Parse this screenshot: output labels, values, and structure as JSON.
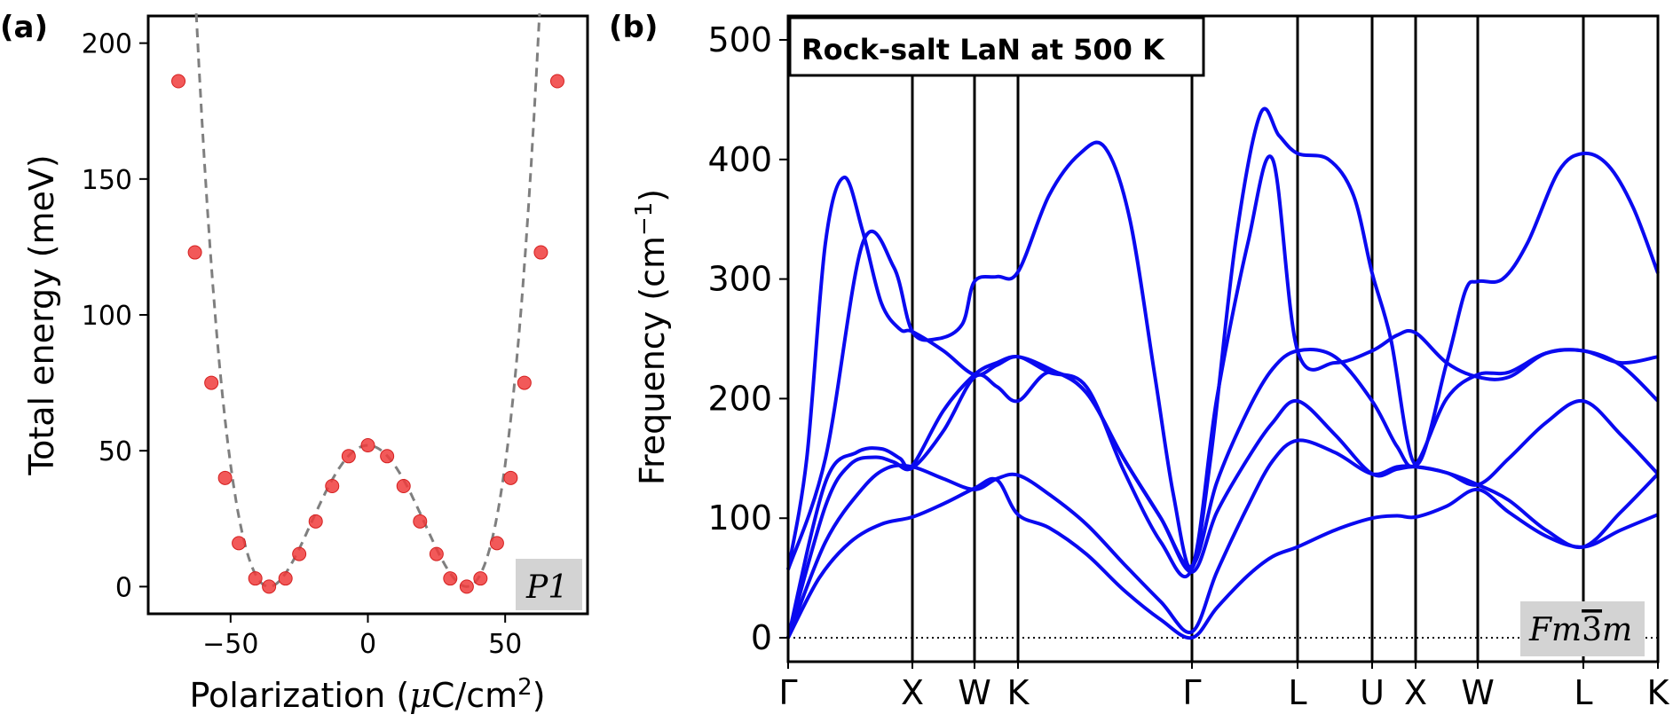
{
  "panels": {
    "a_label": "(a)",
    "b_label": "(b)"
  },
  "chart_data": [
    {
      "type": "scatter",
      "panel": "(a)",
      "xlabel_main": "Polarization (",
      "xlabel_mu": "μ",
      "xlabel_unit": "C/cm",
      "xlabel_sup": "2",
      "xlabel_close": ")",
      "ylabel": "Total energy (meV)",
      "xlim": [
        -80,
        80
      ],
      "ylim": [
        -10,
        210
      ],
      "xticks": [
        -50,
        0,
        50
      ],
      "xtick_labels": [
        "−50",
        "0",
        "50"
      ],
      "yticks": [
        0,
        50,
        100,
        150,
        200
      ],
      "ytick_labels": [
        "0",
        "50",
        "100",
        "150",
        "200"
      ],
      "fit_params": {
        "E0": 52,
        "P0": 36
      },
      "points": {
        "x": [
          -69,
          -63,
          -57,
          -52,
          -47,
          -41,
          -36,
          -30,
          -25,
          -19,
          -13,
          -7,
          0,
          7,
          13,
          19,
          25,
          30,
          36,
          41,
          47,
          52,
          57,
          63,
          69
        ],
        "y": [
          186,
          123,
          75,
          40,
          16,
          3,
          0,
          3,
          12,
          24,
          37,
          48,
          52,
          48,
          37,
          24,
          12,
          3,
          0,
          3,
          16,
          40,
          75,
          123,
          186
        ]
      },
      "annotation": "P1",
      "colors": {
        "points": "#f03c3c",
        "fit": "#7f7f7f",
        "label_box": "#d3d3d3"
      }
    },
    {
      "type": "line",
      "panel": "(b)",
      "title": "Rock-salt LaN at 500 K",
      "ylabel_main": "Frequency (cm",
      "ylabel_sup": "−1",
      "ylabel_close": ")",
      "ylim": [
        -20,
        520
      ],
      "yticks": [
        0,
        100,
        200,
        300,
        400,
        500
      ],
      "ytick_labels": [
        "0",
        "100",
        "200",
        "300",
        "400",
        "500"
      ],
      "path_labels": [
        "Γ",
        "X",
        "W",
        "K",
        "Γ",
        "L",
        "U",
        "X",
        "W",
        "L",
        "K"
      ],
      "path_positions": [
        0,
        1.0,
        1.5,
        1.85,
        3.25,
        4.1,
        4.7,
        5.05,
        5.55,
        6.4,
        7.0
      ],
      "annotation_main": "Fm",
      "annotation_bar": "3",
      "annotation_end": "m",
      "series": [
        {
          "x": [
            0,
            0.25,
            0.5,
            0.75,
            1.0,
            1.25,
            1.5,
            1.68,
            1.85,
            2.1,
            2.4,
            2.7,
            3.0,
            3.25,
            3.45,
            3.7,
            3.9,
            4.1,
            4.4,
            4.7,
            4.9,
            5.05,
            5.3,
            5.55,
            5.8,
            6.1,
            6.4,
            6.7,
            7.0
          ],
          "y": [
            0,
            50,
            80,
            95,
            101,
            112,
            125,
            132,
            103,
            92,
            70,
            40,
            15,
            0,
            25,
            52,
            68,
            76,
            90,
            100,
            102,
            101,
            110,
            124,
            105,
            85,
            76,
            90,
            103
          ]
        },
        {
          "x": [
            0,
            0.3,
            0.6,
            0.8,
            1.0,
            1.25,
            1.5,
            1.68,
            1.85,
            2.1,
            2.4,
            2.7,
            3.0,
            3.25,
            3.45,
            3.7,
            3.9,
            4.1,
            4.4,
            4.7,
            4.9,
            5.05,
            5.3,
            5.55,
            5.8,
            6.1,
            6.4,
            6.7,
            7.0
          ],
          "y": [
            0,
            80,
            125,
            142,
            143,
            133,
            124,
            133,
            136,
            120,
            95,
            62,
            30,
            5,
            55,
            110,
            148,
            165,
            155,
            137,
            143,
            143,
            138,
            128,
            115,
            90,
            76,
            105,
            137
          ]
        },
        {
          "x": [
            0,
            0.3,
            0.5,
            0.7,
            0.85,
            1.0,
            1.25,
            1.5,
            1.68,
            1.85,
            2.1,
            2.4,
            2.7,
            3.0,
            3.25,
            3.45,
            3.7,
            3.9,
            4.1,
            4.4,
            4.7,
            4.9,
            5.05,
            5.3,
            5.55,
            5.8,
            6.1,
            6.4,
            6.7,
            7.0
          ],
          "y": [
            0,
            110,
            145,
            151,
            147,
            142,
            173,
            218,
            210,
            198,
            222,
            205,
            150,
            100,
            55,
            105,
            150,
            180,
            198,
            170,
            137,
            141,
            143,
            138,
            128,
            150,
            180,
            198,
            170,
            137
          ]
        },
        {
          "x": [
            0,
            0.3,
            0.55,
            0.75,
            0.9,
            1.0,
            1.25,
            1.5,
            1.68,
            1.85,
            2.1,
            2.4,
            2.7,
            3.0,
            3.25,
            3.45,
            3.7,
            3.9,
            4.1,
            4.4,
            4.7,
            4.9,
            5.05,
            5.3,
            5.55,
            5.8,
            6.1,
            6.4,
            6.7,
            7.0
          ],
          "y": [
            0,
            130,
            155,
            158,
            150,
            144,
            190,
            220,
            230,
            235,
            225,
            205,
            150,
            100,
            60,
            130,
            190,
            225,
            240,
            235,
            198,
            160,
            145,
            200,
            220,
            222,
            238,
            240,
            228,
            198
          ]
        },
        {
          "x": [
            0,
            0.15,
            0.3,
            0.45,
            0.6,
            0.75,
            0.9,
            1.0,
            1.25,
            1.5,
            1.68,
            1.85,
            2.1,
            2.4,
            2.7,
            3.0,
            3.25,
            3.45,
            3.7,
            3.9,
            4.1,
            4.4,
            4.7,
            4.9,
            5.05,
            5.3,
            5.55,
            5.8,
            6.1,
            6.4,
            6.7,
            7.0
          ],
          "y": [
            57,
            150,
            330,
            385,
            340,
            280,
            258,
            256,
            240,
            220,
            228,
            235,
            222,
            210,
            140,
            80,
            58,
            200,
            330,
            400,
            240,
            230,
            240,
            253,
            255,
            230,
            218,
            218,
            238,
            240,
            230,
            235
          ]
        },
        {
          "x": [
            0,
            0.3,
            0.6,
            0.85,
            1.0,
            1.2,
            1.4,
            1.5,
            1.68,
            1.85,
            2.1,
            2.35,
            2.55,
            2.75,
            2.95,
            3.1,
            3.25,
            3.4,
            3.6,
            3.8,
            3.95,
            4.1,
            4.35,
            4.55,
            4.7,
            4.85,
            5.05,
            5.3,
            5.45,
            5.55,
            5.75,
            5.95,
            6.2,
            6.4,
            6.6,
            6.8,
            7.0
          ],
          "y": [
            57,
            150,
            330,
            310,
            256,
            250,
            262,
            298,
            302,
            306,
            370,
            405,
            410,
            350,
            220,
            120,
            58,
            150,
            330,
            438,
            420,
            405,
            400,
            370,
            305,
            250,
            145,
            230,
            290,
            298,
            300,
            330,
            390,
            405,
            395,
            360,
            305
          ]
        }
      ],
      "colors": {
        "line": "#0a0af0",
        "label_box": "#d3d3d3",
        "zero_line": "#000000"
      }
    }
  ]
}
